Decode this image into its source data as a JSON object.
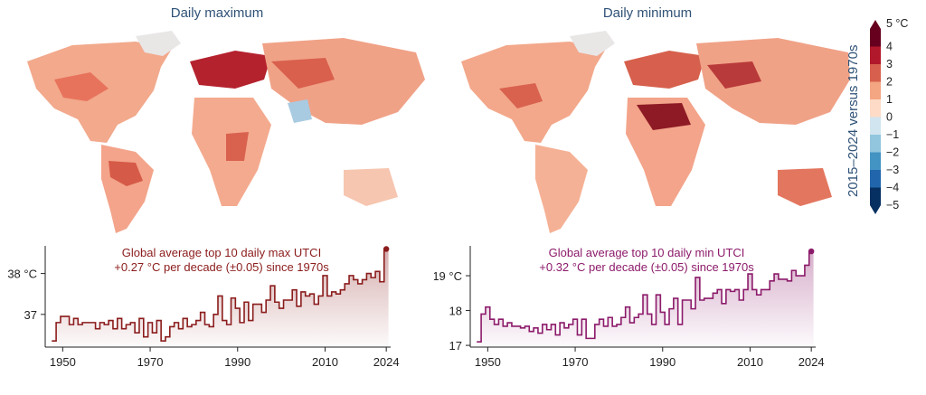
{
  "maps": [
    {
      "title": "Daily maximum"
    },
    {
      "title": "Daily minimum"
    }
  ],
  "colorbar": {
    "title": "2015–2024 versus 1970s",
    "top_label": "5 °C",
    "labels": [
      "4",
      "3",
      "2",
      "1",
      "0",
      "−1",
      "−2",
      "−3",
      "−4",
      "−5"
    ],
    "colors": [
      "#67001f",
      "#b2182b",
      "#d6604d",
      "#f4a582",
      "#fddbc7",
      "#d1e5f0",
      "#92c5de",
      "#4393c3",
      "#2166ac",
      "#053061"
    ]
  },
  "chart_data": [
    {
      "type": "line",
      "title": "Global average top 10 daily max UTCI",
      "subtitle": "+0.27 °C per decade (±0.05) since 1970s",
      "ytick_labels": [
        "38 °C",
        "37"
      ],
      "yticks": [
        38,
        37
      ],
      "xticks": [
        "1950",
        "1970",
        "1990",
        "2010",
        "2024"
      ],
      "ylim": [
        36.2,
        38.5
      ],
      "xlim": [
        1946,
        2025
      ],
      "color": "#8b1c1c",
      "x": [
        1948,
        1949,
        1950,
        1951,
        1952,
        1953,
        1954,
        1955,
        1956,
        1957,
        1958,
        1959,
        1960,
        1961,
        1962,
        1963,
        1964,
        1965,
        1966,
        1967,
        1968,
        1969,
        1970,
        1971,
        1972,
        1973,
        1974,
        1975,
        1976,
        1977,
        1978,
        1979,
        1980,
        1981,
        1982,
        1983,
        1984,
        1985,
        1986,
        1987,
        1988,
        1989,
        1990,
        1991,
        1992,
        1993,
        1994,
        1995,
        1996,
        1997,
        1998,
        1999,
        2000,
        2001,
        2002,
        2003,
        2004,
        2005,
        2006,
        2007,
        2008,
        2009,
        2010,
        2011,
        2012,
        2013,
        2014,
        2015,
        2016,
        2017,
        2018,
        2019,
        2020,
        2021,
        2022,
        2023,
        2024
      ],
      "values": [
        36.35,
        36.8,
        36.95,
        36.95,
        36.75,
        36.9,
        36.75,
        36.8,
        36.8,
        36.8,
        36.65,
        36.8,
        36.75,
        36.85,
        36.65,
        36.9,
        36.65,
        36.75,
        36.8,
        36.55,
        36.9,
        36.45,
        36.8,
        36.55,
        36.85,
        36.35,
        36.45,
        36.7,
        36.8,
        36.65,
        36.9,
        36.7,
        36.75,
        36.85,
        37.05,
        36.75,
        36.7,
        37.0,
        37.45,
        36.85,
        36.75,
        37.4,
        37.15,
        36.8,
        37.3,
        36.85,
        37.25,
        37.25,
        37.05,
        37.35,
        37.7,
        37.3,
        37.15,
        37.35,
        37.35,
        37.6,
        37.2,
        37.55,
        37.45,
        37.5,
        37.25,
        37.45,
        37.95,
        37.45,
        37.55,
        37.5,
        37.6,
        37.75,
        37.95,
        37.85,
        37.75,
        37.85,
        38.0,
        37.9,
        38.05,
        37.8,
        38.6
      ]
    },
    {
      "type": "line",
      "title": "Global average top 10 daily min UTCI",
      "subtitle": "+0.32 °C per decade (±0.05) since 1970s",
      "ytick_labels": [
        "19 °C",
        "18",
        "17"
      ],
      "yticks": [
        19,
        18,
        17
      ],
      "xticks": [
        "1950",
        "1970",
        "1990",
        "2010",
        "2024"
      ],
      "ylim": [
        16.95,
        19.65
      ],
      "xlim": [
        1946,
        2025
      ],
      "color": "#8c1a6a",
      "x": [
        1948,
        1949,
        1950,
        1951,
        1952,
        1953,
        1954,
        1955,
        1956,
        1957,
        1958,
        1959,
        1960,
        1961,
        1962,
        1963,
        1964,
        1965,
        1966,
        1967,
        1968,
        1969,
        1970,
        1971,
        1972,
        1973,
        1974,
        1975,
        1976,
        1977,
        1978,
        1979,
        1980,
        1981,
        1982,
        1983,
        1984,
        1985,
        1986,
        1987,
        1988,
        1989,
        1990,
        1991,
        1992,
        1993,
        1994,
        1995,
        1996,
        1997,
        1998,
        1999,
        2000,
        2001,
        2002,
        2003,
        2004,
        2005,
        2006,
        2007,
        2008,
        2009,
        2010,
        2011,
        2012,
        2013,
        2014,
        2015,
        2016,
        2017,
        2018,
        2019,
        2020,
        2021,
        2022,
        2023,
        2024
      ],
      "values": [
        17.1,
        17.9,
        18.1,
        17.75,
        17.6,
        17.75,
        17.55,
        17.65,
        17.55,
        17.55,
        17.5,
        17.55,
        17.4,
        17.5,
        17.35,
        17.6,
        17.45,
        17.6,
        17.3,
        17.65,
        17.5,
        17.6,
        17.75,
        17.3,
        17.75,
        17.2,
        17.2,
        17.6,
        17.75,
        17.55,
        17.8,
        17.55,
        17.6,
        17.8,
        18.1,
        17.65,
        17.8,
        17.9,
        18.45,
        17.9,
        17.6,
        18.45,
        17.95,
        17.6,
        18.05,
        18.35,
        17.6,
        18.3,
        18.3,
        18.05,
        18.95,
        18.3,
        18.35,
        18.35,
        18.5,
        18.6,
        18.2,
        18.6,
        18.55,
        18.6,
        18.3,
        18.6,
        19.05,
        18.6,
        18.45,
        18.6,
        18.6,
        18.85,
        19.05,
        18.9,
        18.9,
        18.85,
        19.15,
        19.0,
        19.0,
        19.3,
        19.7
      ]
    }
  ]
}
